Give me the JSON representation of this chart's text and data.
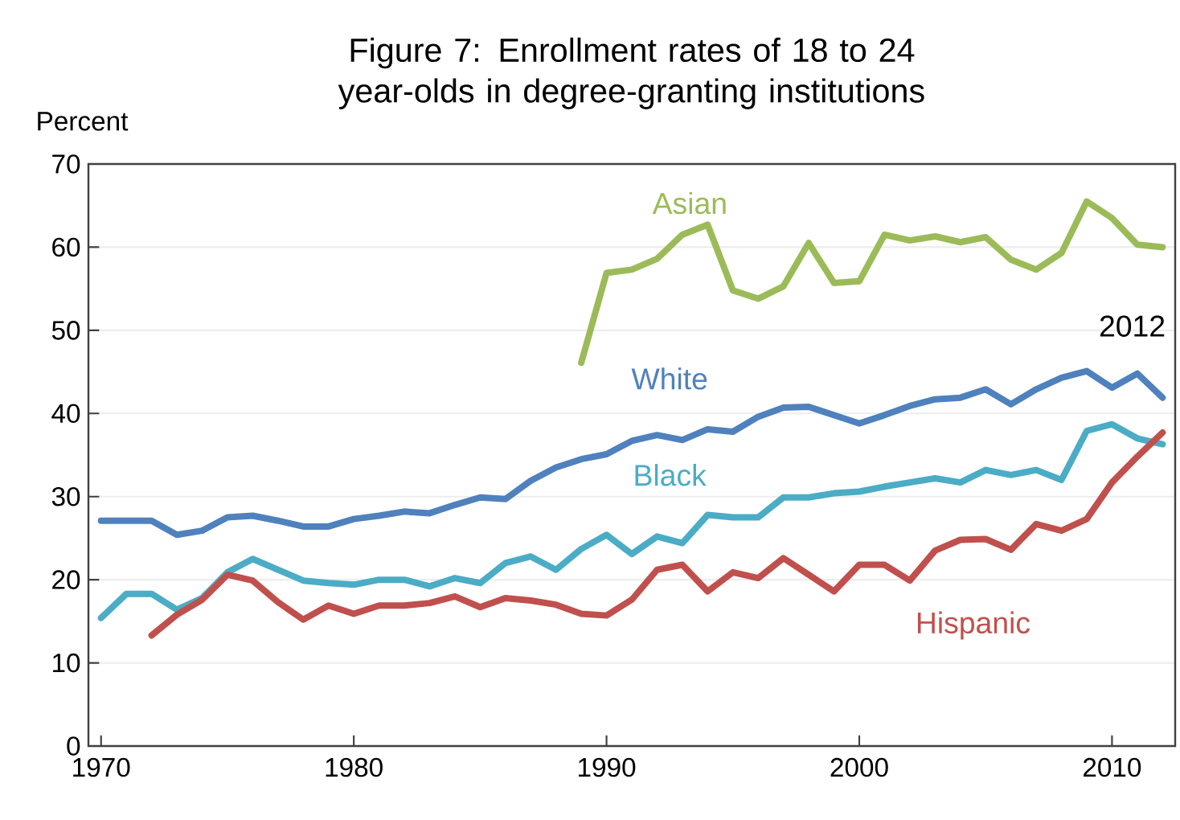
{
  "chart_data": {
    "type": "line",
    "title": "Figure 7: Enrollment rates of 18 to 24 year-olds in degree-granting institutions",
    "ylabel": "Percent",
    "x": [
      1970,
      1971,
      1972,
      1973,
      1974,
      1975,
      1976,
      1977,
      1978,
      1979,
      1980,
      1981,
      1982,
      1983,
      1984,
      1985,
      1986,
      1987,
      1988,
      1989,
      1990,
      1991,
      1992,
      1993,
      1994,
      1995,
      1996,
      1997,
      1998,
      1999,
      2000,
      2001,
      2002,
      2003,
      2004,
      2005,
      2006,
      2007,
      2008,
      2009,
      2010,
      2011,
      2012
    ],
    "series": [
      {
        "name": "Asian",
        "color": "#9bbb59",
        "values": [
          null,
          null,
          null,
          null,
          null,
          null,
          null,
          null,
          null,
          null,
          null,
          null,
          null,
          null,
          null,
          null,
          null,
          null,
          null,
          46.1,
          56.9,
          57.3,
          58.6,
          61.5,
          62.7,
          54.8,
          53.8,
          55.3,
          60.5,
          55.7,
          55.9,
          61.5,
          60.8,
          61.3,
          60.6,
          61.2,
          58.5,
          57.3,
          59.3,
          65.5,
          63.5,
          60.3,
          60.0
        ]
      },
      {
        "name": "White",
        "color": "#4f81bd",
        "values": [
          27.1,
          27.1,
          27.1,
          25.4,
          25.9,
          27.5,
          27.7,
          27.1,
          26.4,
          26.4,
          27.3,
          27.7,
          28.2,
          28.0,
          29.0,
          29.9,
          29.7,
          31.9,
          33.5,
          34.5,
          35.1,
          36.7,
          37.4,
          36.8,
          38.1,
          37.8,
          39.6,
          40.7,
          40.8,
          39.8,
          38.8,
          39.8,
          40.9,
          41.7,
          41.9,
          42.9,
          41.1,
          42.9,
          44.3,
          45.1,
          43.1,
          44.8,
          41.9
        ]
      },
      {
        "name": "Black",
        "color": "#4bacc6",
        "values": [
          15.4,
          18.3,
          18.3,
          16.4,
          17.8,
          20.9,
          22.5,
          21.2,
          19.9,
          19.6,
          19.4,
          20.0,
          20.0,
          19.2,
          20.2,
          19.6,
          22.0,
          22.8,
          21.2,
          23.7,
          25.4,
          23.1,
          25.2,
          24.4,
          27.8,
          27.5,
          27.5,
          29.9,
          29.9,
          30.4,
          30.6,
          31.2,
          31.7,
          32.2,
          31.7,
          33.2,
          32.6,
          33.2,
          32.0,
          37.9,
          38.7,
          37.0,
          36.3
        ]
      },
      {
        "name": "Hispanic",
        "color": "#c0504d",
        "values": [
          null,
          null,
          13.3,
          15.8,
          17.6,
          20.6,
          19.9,
          17.3,
          15.2,
          16.9,
          15.9,
          16.9,
          16.9,
          17.2,
          18.0,
          16.7,
          17.8,
          17.5,
          17.0,
          15.9,
          15.7,
          17.6,
          21.2,
          21.8,
          18.6,
          20.9,
          20.2,
          22.6,
          20.6,
          18.6,
          21.8,
          21.8,
          19.9,
          23.5,
          24.8,
          24.9,
          23.6,
          26.7,
          25.9,
          27.3,
          31.7,
          34.8,
          37.7
        ]
      }
    ],
    "annotations": [
      "2012"
    ],
    "xlim": [
      1969.5,
      2012.5
    ],
    "ylim": [
      0,
      70
    ],
    "xticks": [
      1970,
      1980,
      1990,
      2000,
      2010
    ],
    "yticks": [
      0,
      10,
      20,
      30,
      40,
      50,
      60,
      70
    ],
    "grid": "y",
    "legend": false,
    "marker": "none",
    "line_style": "solid"
  }
}
